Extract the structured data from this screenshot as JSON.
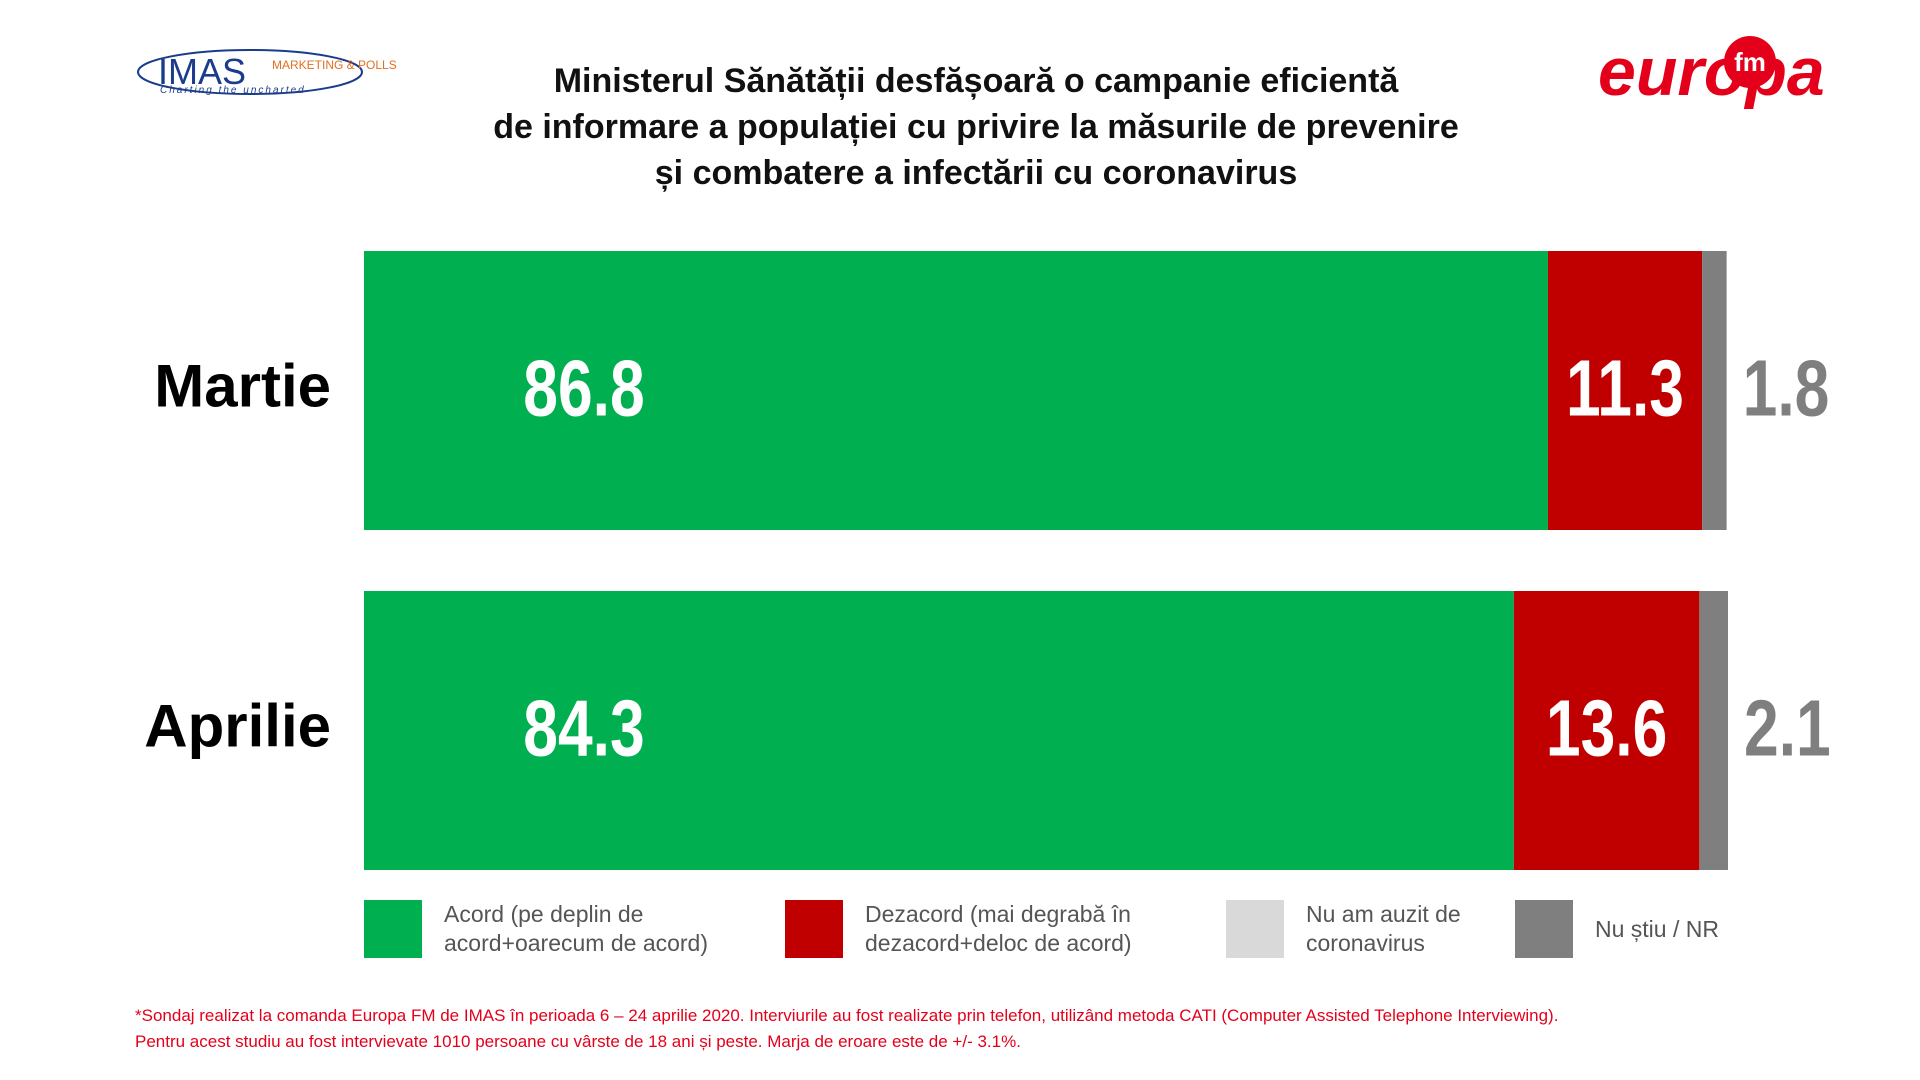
{
  "chart_data": {
    "type": "stacked-bar-horizontal",
    "title": [
      "Ministerul Sănătății desfășoară o campanie eficientă",
      "de informare a populației cu privire la măsurile de prevenire",
      "și combatere a infectării cu coronavirus"
    ],
    "categories": [
      "Martie",
      "Aprilie"
    ],
    "xlim": [
      0,
      100
    ],
    "series": [
      {
        "name": "Acord (pe deplin de acord+oarecum de acord)",
        "color": "#00b050",
        "values": [
          86.8,
          84.3
        ]
      },
      {
        "name": "Dezacord  (mai degrabă în dezacord+deloc de acord)",
        "color": "#c00000",
        "values": [
          11.3,
          13.6
        ]
      },
      {
        "name": "Nu am auzit de coronavirus",
        "color": "#d9d9d9",
        "values": [
          0,
          0
        ]
      },
      {
        "name": "Nu știu / NR",
        "color": "#7f7f7f",
        "values": [
          1.8,
          2.1
        ]
      }
    ]
  },
  "logos": {
    "imas": "IMAS",
    "imas_sub": "MARKETING & POLLS",
    "imas_tagline": "Charting the uncharted",
    "europa": "europa",
    "fm": "fm"
  },
  "footnote": [
    "*Sondaj realizat la comanda Europa FM de IMAS în perioada  6 – 24 aprilie 2020. Interviurile au fost realizate prin telefon, utilizând metoda CATI (Computer Assisted Telephone Interviewing).",
    "Pentru acest studiu au fost intervievate 1010 persoane cu vârste de 18 ani și peste. Marja de eroare este de +/- 3.1%."
  ]
}
